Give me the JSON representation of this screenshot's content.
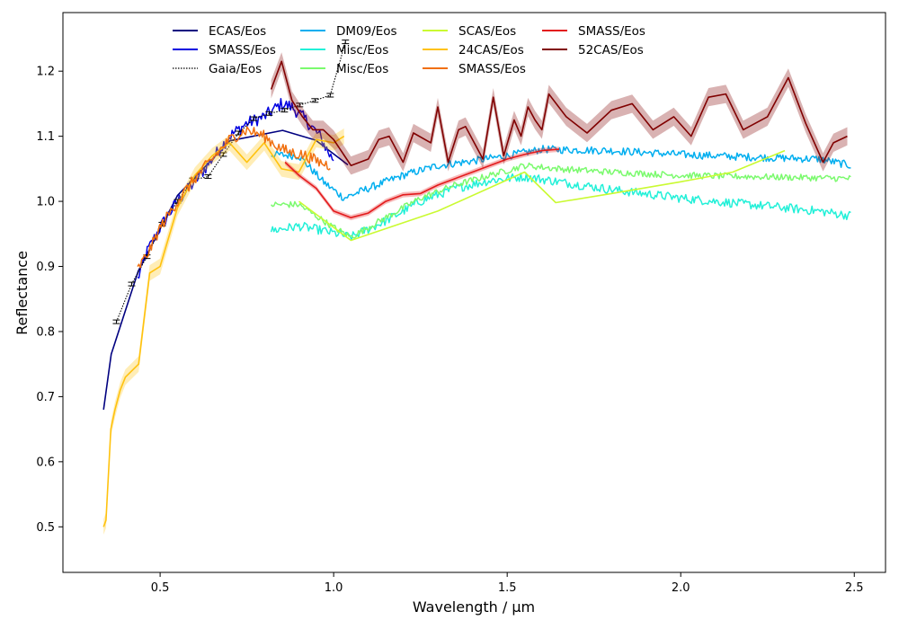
{
  "chart_data": {
    "type": "line",
    "title": "",
    "xlabel": "Wavelength / µm",
    "ylabel": "Reflectance",
    "xlim": [
      0.22,
      2.59
    ],
    "ylim": [
      0.43,
      1.29
    ],
    "xticks": [
      0.5,
      1.0,
      1.5,
      2.0,
      2.5
    ],
    "xtick_labels": [
      "0.5",
      "1.0",
      "1.5",
      "2.0",
      "2.5"
    ],
    "yticks": [
      0.5,
      0.6,
      0.7,
      0.8,
      0.9,
      1.0,
      1.1,
      1.2
    ],
    "ytick_labels": [
      "0.5",
      "0.6",
      "0.7",
      "0.8",
      "0.9",
      "1.0",
      "1.1",
      "1.2"
    ],
    "grid": false,
    "legend_position": "top",
    "series": [
      {
        "name": "ECAS/Eos",
        "color": "#000080",
        "style": "solid",
        "x": [
          0.337,
          0.359,
          0.437,
          0.55,
          0.701,
          0.853,
          0.948,
          1.041
        ],
        "y": [
          0.68,
          0.765,
          0.893,
          1.009,
          1.093,
          1.109,
          1.094,
          1.056
        ]
      },
      {
        "name": "SMASS/Eos",
        "color": "#0000e0",
        "style": "noisy",
        "x": [
          0.435,
          0.46,
          0.5,
          0.55,
          0.6,
          0.65,
          0.7,
          0.75,
          0.8,
          0.85,
          0.88,
          0.92,
          0.96,
          0.99,
          1.0
        ],
        "y": [
          0.88,
          0.92,
          0.96,
          1.0,
          1.03,
          1.065,
          1.1,
          1.12,
          1.13,
          1.15,
          1.145,
          1.125,
          1.1,
          1.07,
          1.065
        ],
        "noise": 0.01
      },
      {
        "name": "Gaia/Eos",
        "color": "#000000",
        "style": "dotted-errorbar",
        "x": [
          0.374,
          0.418,
          0.462,
          0.506,
          0.55,
          0.594,
          0.638,
          0.682,
          0.726,
          0.77,
          0.814,
          0.858,
          0.902,
          0.946,
          0.99,
          1.034
        ],
        "y": [
          0.815,
          0.873,
          0.915,
          0.965,
          1.0,
          1.033,
          1.038,
          1.072,
          1.105,
          1.127,
          1.135,
          1.14,
          1.148,
          1.155,
          1.163,
          1.245
        ]
      },
      {
        "name": "DM09/Eos",
        "color": "#00aeef",
        "style": "noisy",
        "x": [
          0.82,
          0.9,
          0.97,
          1.03,
          1.1,
          1.2,
          1.3,
          1.4,
          1.5,
          1.6,
          1.8,
          2.0,
          2.2,
          2.4,
          2.49
        ],
        "y": [
          1.072,
          1.07,
          1.03,
          1.005,
          1.02,
          1.04,
          1.055,
          1.062,
          1.07,
          1.08,
          1.078,
          1.072,
          1.068,
          1.065,
          1.055
        ],
        "noise": 0.006
      },
      {
        "name": "Misc/Eos",
        "color": "#22f0d8",
        "style": "noisy",
        "x": [
          0.82,
          0.9,
          0.97,
          1.05,
          1.15,
          1.25,
          1.35,
          1.45,
          1.55,
          1.65,
          1.8,
          2.0,
          2.2,
          2.4,
          2.49
        ],
        "y": [
          0.955,
          0.962,
          0.955,
          0.945,
          0.97,
          1.0,
          1.02,
          1.032,
          1.038,
          1.03,
          1.018,
          1.005,
          0.995,
          0.985,
          0.978
        ],
        "noise": 0.007
      },
      {
        "name": "Misc/Eos",
        "color": "#7bfa6e",
        "style": "noisy",
        "x": [
          0.82,
          0.9,
          1.0,
          1.05,
          1.15,
          1.25,
          1.35,
          1.45,
          1.55,
          1.65,
          1.8,
          2.0,
          2.2,
          2.4,
          2.49
        ],
        "y": [
          0.995,
          0.995,
          0.96,
          0.945,
          0.975,
          1.005,
          1.025,
          1.04,
          1.055,
          1.05,
          1.045,
          1.04,
          1.038,
          1.036,
          1.035
        ],
        "noise": 0.005
      },
      {
        "name": "SCAS/Eos",
        "color": "#cafa32",
        "style": "solid",
        "x": [
          0.9,
          1.05,
          1.3,
          1.55,
          1.64,
          1.8,
          2.0,
          2.15,
          2.3
        ],
        "y": [
          1.0,
          0.94,
          0.985,
          1.045,
          0.998,
          1.012,
          1.03,
          1.045,
          1.078
        ]
      },
      {
        "name": "24CAS/Eos",
        "color": "#ffc20e",
        "style": "band",
        "x": [
          0.337,
          0.344,
          0.358,
          0.37,
          0.385,
          0.4,
          0.438,
          0.47,
          0.5,
          0.55,
          0.6,
          0.65,
          0.7,
          0.75,
          0.8,
          0.85,
          0.9,
          0.95,
          1.0,
          1.03
        ],
        "y": [
          0.5,
          0.51,
          0.65,
          0.68,
          0.71,
          0.73,
          0.75,
          0.89,
          0.9,
          0.99,
          1.04,
          1.07,
          1.09,
          1.06,
          1.09,
          1.05,
          1.045,
          1.095,
          1.09,
          1.1
        ],
        "err": 0.012
      },
      {
        "name": "SMASS/Eos",
        "color": "#f07010",
        "style": "noisy",
        "x": [
          0.435,
          0.47,
          0.5,
          0.55,
          0.6,
          0.65,
          0.7,
          0.75,
          0.8,
          0.85,
          0.88,
          0.92,
          0.96,
          0.99
        ],
        "y": [
          0.895,
          0.925,
          0.96,
          1.0,
          1.035,
          1.065,
          1.095,
          1.11,
          1.1,
          1.08,
          1.075,
          1.07,
          1.06,
          1.055
        ],
        "noise": 0.009
      },
      {
        "name": "SMASS/Eos",
        "color": "#e31a1c",
        "style": "band",
        "x": [
          0.86,
          0.9,
          0.95,
          1.0,
          1.05,
          1.1,
          1.15,
          1.2,
          1.25,
          1.3,
          1.35,
          1.4,
          1.45,
          1.5,
          1.55,
          1.6,
          1.65
        ],
        "y": [
          1.06,
          1.04,
          1.02,
          0.985,
          0.975,
          0.982,
          1.0,
          1.01,
          1.012,
          1.025,
          1.035,
          1.045,
          1.055,
          1.065,
          1.072,
          1.078,
          1.08
        ],
        "err": 0.004
      },
      {
        "name": "52CAS/Eos",
        "color": "#800000",
        "style": "band",
        "x": [
          0.82,
          0.85,
          0.88,
          0.91,
          0.94,
          0.97,
          1.0,
          1.05,
          1.1,
          1.13,
          1.16,
          1.2,
          1.23,
          1.28,
          1.3,
          1.33,
          1.36,
          1.38,
          1.43,
          1.46,
          1.49,
          1.52,
          1.54,
          1.56,
          1.58,
          1.6,
          1.62,
          1.67,
          1.73,
          1.8,
          1.86,
          1.92,
          1.98,
          2.03,
          2.08,
          2.13,
          2.18,
          2.25,
          2.31,
          2.36,
          2.41,
          2.44,
          2.48
        ],
        "y": [
          1.172,
          1.215,
          1.155,
          1.13,
          1.11,
          1.11,
          1.095,
          1.055,
          1.065,
          1.095,
          1.1,
          1.06,
          1.105,
          1.09,
          1.145,
          1.06,
          1.11,
          1.115,
          1.065,
          1.16,
          1.07,
          1.125,
          1.1,
          1.145,
          1.125,
          1.11,
          1.165,
          1.13,
          1.105,
          1.14,
          1.15,
          1.11,
          1.13,
          1.1,
          1.16,
          1.165,
          1.11,
          1.13,
          1.19,
          1.12,
          1.06,
          1.09,
          1.1
        ],
        "err": 0.014
      }
    ]
  }
}
